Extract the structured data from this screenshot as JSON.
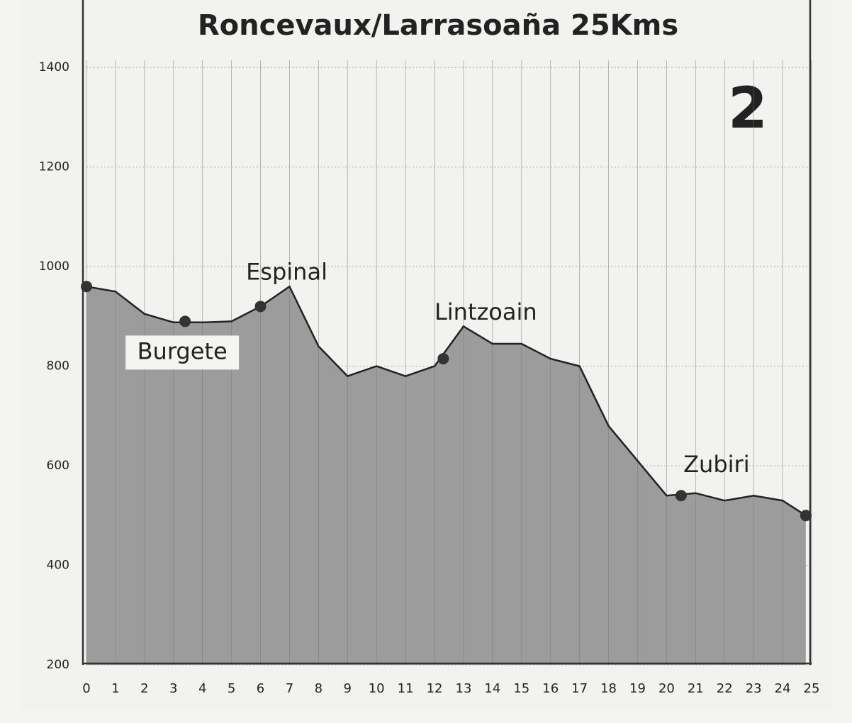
{
  "chart_data": {
    "type": "area",
    "title": "Roncevaux/Larrasoaña 25Kms",
    "stage_number": "2",
    "x": [
      0,
      1,
      2,
      3,
      4,
      5,
      6,
      7,
      8,
      9,
      10,
      11,
      12,
      13,
      14,
      15,
      16,
      17,
      18,
      19,
      20,
      21,
      22,
      23,
      24,
      24.8
    ],
    "series": [
      {
        "color": "#9c9c9c",
        "values": [
          960,
          950,
          905,
          888,
          888,
          890,
          920,
          960,
          840,
          780,
          800,
          780,
          800,
          880,
          845,
          845,
          815,
          800,
          680,
          610,
          540,
          545,
          530,
          540,
          530,
          500
        ]
      }
    ],
    "markers": [
      {
        "label": "Burgete",
        "x": 3.4,
        "y": 890
      },
      {
        "label": "Espinal",
        "x": 6,
        "y": 920
      },
      {
        "label": "Lintzoain",
        "x": 12.3,
        "y": 815
      },
      {
        "label": "Zubiri",
        "x": 20.5,
        "y": 540
      }
    ],
    "xlim": [
      0,
      25
    ],
    "xticks": [
      0,
      1,
      2,
      3,
      4,
      5,
      6,
      7,
      8,
      9,
      10,
      11,
      12,
      13,
      14,
      15,
      16,
      17,
      18,
      19,
      20,
      21,
      22,
      23,
      24,
      25
    ],
    "ylim": [
      200,
      1500
    ],
    "yticks": [
      200,
      400,
      600,
      800,
      1000,
      1200,
      1400
    ],
    "grid": true
  }
}
